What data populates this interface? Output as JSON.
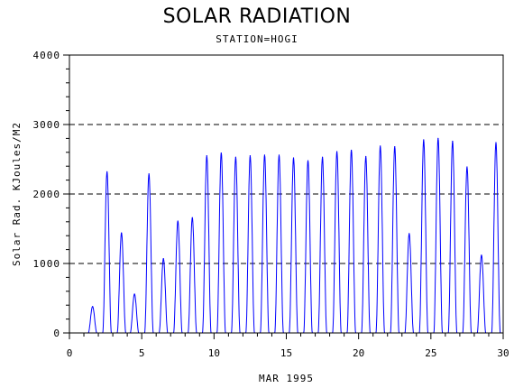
{
  "chart_data": {
    "type": "line",
    "title": "SOLAR RADIATION",
    "subtitle": "STATION=HOGI",
    "xlabel": "MAR 1995",
    "ylabel": "Solar Rad. KJoules/M2",
    "xlim": [
      0,
      30
    ],
    "ylim": [
      0,
      4000
    ],
    "xticks": [
      0,
      5,
      10,
      15,
      20,
      25,
      30
    ],
    "yticks": [
      0,
      1000,
      2000,
      3000,
      4000
    ],
    "xtick_labels": [
      "0",
      "5",
      "10",
      "15",
      "20",
      "25",
      "30"
    ],
    "ytick_labels": [
      "0",
      "1000",
      "2000",
      "3000",
      "4000"
    ],
    "gridlines_y": [
      1000,
      2000,
      3000,
      4000
    ],
    "series": [
      {
        "color": "#0000ff",
        "daily_peaks": [
          {
            "day": 1.6,
            "value": 380
          },
          {
            "day": 2.6,
            "value": 2320
          },
          {
            "day": 3.6,
            "value": 1440
          },
          {
            "day": 4.5,
            "value": 560
          },
          {
            "day": 5.5,
            "value": 2290
          },
          {
            "day": 6.5,
            "value": 1070
          },
          {
            "day": 7.5,
            "value": 1610
          },
          {
            "day": 8.5,
            "value": 1660
          },
          {
            "day": 9.5,
            "value": 2550
          },
          {
            "day": 10.5,
            "value": 2590
          },
          {
            "day": 11.5,
            "value": 2530
          },
          {
            "day": 12.5,
            "value": 2550
          },
          {
            "day": 13.5,
            "value": 2560
          },
          {
            "day": 14.5,
            "value": 2560
          },
          {
            "day": 15.5,
            "value": 2520
          },
          {
            "day": 16.5,
            "value": 2480
          },
          {
            "day": 17.5,
            "value": 2530
          },
          {
            "day": 18.5,
            "value": 2610
          },
          {
            "day": 19.5,
            "value": 2630
          },
          {
            "day": 20.5,
            "value": 2540
          },
          {
            "day": 21.5,
            "value": 2690
          },
          {
            "day": 22.5,
            "value": 2680
          },
          {
            "day": 23.5,
            "value": 1430
          },
          {
            "day": 24.5,
            "value": 2780
          },
          {
            "day": 25.5,
            "value": 2800
          },
          {
            "day": 26.5,
            "value": 2760
          },
          {
            "day": 27.5,
            "value": 2390
          },
          {
            "day": 28.5,
            "value": 1120
          },
          {
            "day": 29.5,
            "value": 2740
          }
        ]
      }
    ]
  }
}
